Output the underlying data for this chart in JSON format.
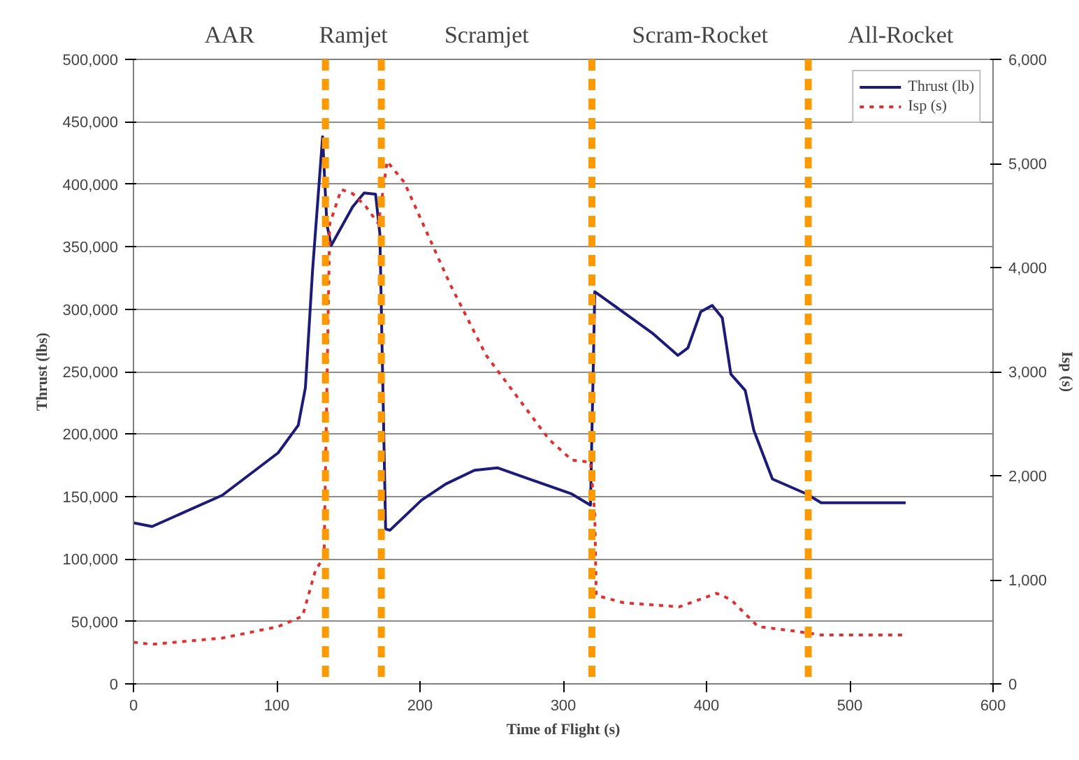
{
  "chart_data": {
    "type": "line",
    "xlabel": "Time of Flight (s)",
    "ylabel": "Thrust (lbs)",
    "y2label": "Isp (s)",
    "xlim": [
      0,
      600
    ],
    "xticks": [
      0,
      100,
      200,
      300,
      400,
      500,
      600
    ],
    "ylim": [
      0,
      500000
    ],
    "yticks": [
      {
        "value": 0,
        "label": "0"
      },
      {
        "value": 50000,
        "label": "50,000"
      },
      {
        "value": 100000,
        "label": "100,000"
      },
      {
        "value": 150000,
        "label": "150,000"
      },
      {
        "value": 200000,
        "label": "200,000"
      },
      {
        "value": 250000,
        "label": "250,000"
      },
      {
        "value": 300000,
        "label": "300,000"
      },
      {
        "value": 350000,
        "label": "350,000"
      },
      {
        "value": 400000,
        "label": "400,000"
      },
      {
        "value": 450000,
        "label": "450,000"
      },
      {
        "value": 500000,
        "label": "500,000"
      }
    ],
    "y2lim": [
      0,
      6000
    ],
    "y2ticks": [
      {
        "value": 0,
        "label": "0"
      },
      {
        "value": 1000,
        "label": "1,000"
      },
      {
        "value": 2000,
        "label": "2,000"
      },
      {
        "value": 3000,
        "label": "3,000"
      },
      {
        "value": 4000,
        "label": "4,000"
      },
      {
        "value": 5000,
        "label": "5,000"
      },
      {
        "value": 6000,
        "label": "6,000"
      }
    ],
    "series": [
      {
        "name": "Thrust (lb)",
        "color": "#1c1c78",
        "line_style": "solid",
        "x": [
          0,
          13,
          62,
          101,
          115,
          120,
          125,
          132,
          135,
          138,
          153,
          161,
          169,
          172,
          176,
          179,
          201,
          218,
          238,
          254,
          306,
          319,
          322,
          339,
          362,
          380,
          387,
          396,
          404,
          411,
          417,
          427,
          433,
          446,
          470,
          480,
          539
        ],
        "values": [
          129000,
          126000,
          151000,
          185000,
          207000,
          237000,
          331000,
          438000,
          368000,
          351000,
          382000,
          393000,
          392000,
          360000,
          124000,
          123000,
          147000,
          160000,
          171000,
          173000,
          152000,
          143000,
          314000,
          300000,
          281000,
          263000,
          269000,
          298000,
          303000,
          293000,
          248000,
          235000,
          203000,
          164000,
          152000,
          145000,
          145000
        ]
      },
      {
        "name": "Isp (s)",
        "color": "#e03030",
        "line_style": "dotted",
        "axis": "y2",
        "x": [
          0,
          13,
          62,
          101,
          118,
          127,
          133,
          137,
          145,
          153,
          162,
          171,
          177,
          189,
          221,
          246,
          290,
          306,
          319,
          322,
          323,
          342,
          381,
          407,
          417,
          436,
          460,
          480,
          539
        ],
        "values": [
          400,
          380,
          440,
          550,
          650,
          1090,
          1220,
          4420,
          4750,
          4710,
          4590,
          4420,
          5020,
          4820,
          3840,
          3160,
          2350,
          2150,
          2130,
          1630,
          850,
          780,
          740,
          870,
          810,
          550,
          510,
          470,
          470
        ]
      }
    ],
    "ref_lines": [
      {
        "axis": "x",
        "value": 134,
        "color": "#ff9900",
        "line_style": "dashed"
      },
      {
        "axis": "x",
        "value": 173,
        "color": "#ff9900",
        "line_style": "dashed"
      },
      {
        "axis": "x",
        "value": 320,
        "color": "#ff9900",
        "line_style": "dashed"
      },
      {
        "axis": "x",
        "value": 471,
        "color": "#ff9900",
        "line_style": "dashed"
      }
    ],
    "annotations": [
      "AAR",
      "Ramjet",
      "Scramjet",
      "Scram-Rocket",
      "All-Rocket"
    ],
    "grid": "y",
    "legend": "top right",
    "marker": "none"
  }
}
